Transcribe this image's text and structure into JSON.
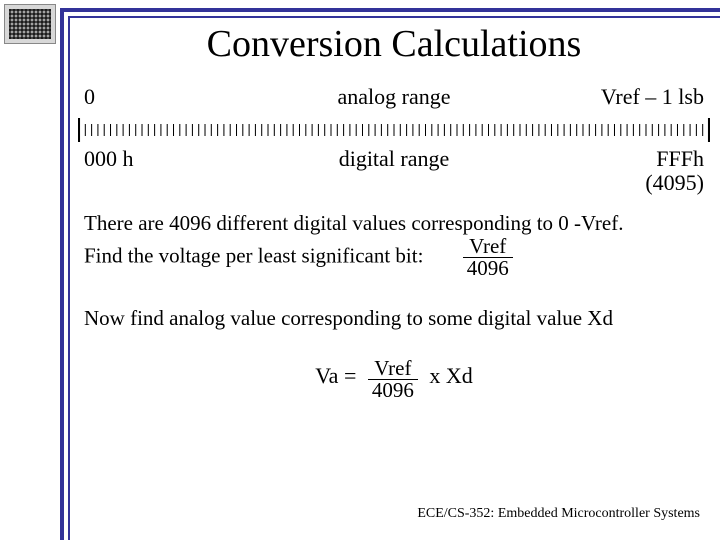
{
  "title": "Conversion Calculations",
  "analog": {
    "left_label": "0",
    "center_label": "analog range",
    "right_label": "Vref – 1 lsb"
  },
  "digital": {
    "left_label": "000 h",
    "center_label": "digital range",
    "right_label": "FFFh",
    "right_sub": "(4095)"
  },
  "ruler": {
    "tick_count": 100,
    "major_every": 100,
    "line_color": "#000000"
  },
  "para1_line1": "There are 4096 different digital values corresponding to 0 -Vref.",
  "para1_line2": "Find the voltage per least significant bit:",
  "frac1": {
    "top": "Vref",
    "bot": "4096"
  },
  "para2": "Now find analog value corresponding to some digital value Xd",
  "equation": {
    "lhs": "Va =",
    "frac_top": "Vref",
    "frac_bot": "4096",
    "rhs": "x  Xd"
  },
  "footer": "ECE/CS-352: Embedded Microcontroller Systems",
  "colors": {
    "accent": "#333399",
    "text": "#000000",
    "background": "#ffffff"
  }
}
